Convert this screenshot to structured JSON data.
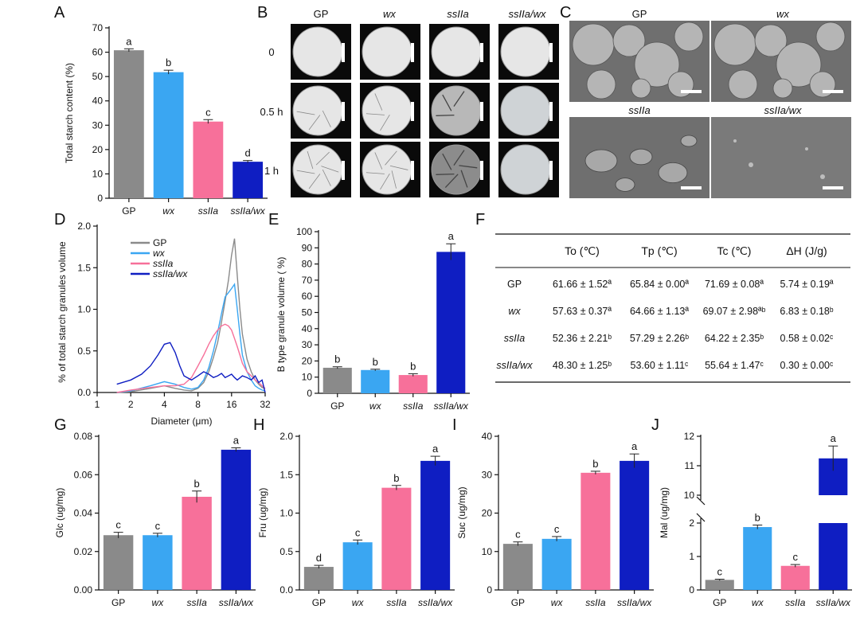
{
  "colors": {
    "GP": "#8a8a8a",
    "wx": "#3aa6f2",
    "ssIIa": "#f7709a",
    "ssIIa/wx": "#0f1ec2",
    "axis": "#111111",
    "photo_bg": "#0a0a0a",
    "sem_bg": "#6f6f6f"
  },
  "genotypes": [
    "GP",
    "wx",
    "ssIIa",
    "ssIIa/wx"
  ],
  "panels": {
    "A": {
      "letter": "A",
      "ylabel": "Total starch content (%)",
      "ylim": [
        0,
        70
      ],
      "ticks": [
        "0",
        "10",
        "20",
        "30",
        "40",
        "50",
        "60",
        "70"
      ]
    },
    "B": {
      "letter": "B",
      "columns": [
        "GP",
        "wx",
        "ssIIa",
        "ssIIa/wx"
      ],
      "rows": [
        "0",
        "0.5 h",
        "1 h"
      ],
      "icon": "petri-dish-photo-icon"
    },
    "C": {
      "letter": "C",
      "labels": [
        "GP",
        "wx",
        "ssIIa",
        "ssIIa/wx"
      ],
      "icon": "sem-micrograph-icon"
    },
    "D": {
      "letter": "D",
      "ylabel": "% of total starch granules volume",
      "xlabel": "Diameter (μm)",
      "yticks": [
        "0.0",
        "0.5",
        "1.0",
        "1.5",
        "2.0"
      ],
      "xticks": [
        "1",
        "2",
        "4",
        "8",
        "16",
        "32"
      ],
      "legend": [
        "GP",
        "wx",
        "ssIIa",
        "ssIIa/wx"
      ]
    },
    "E": {
      "letter": "E",
      "ylabel": "B type granule volume ( %)",
      "ylim": [
        0,
        100
      ],
      "ticks": [
        "0",
        "10",
        "20",
        "30",
        "40",
        "50",
        "60",
        "70",
        "80",
        "90",
        "100"
      ]
    },
    "F": {
      "letter": "F",
      "headers": [
        "",
        "To (℃)",
        "Tp (℃)",
        "Tc (℃)",
        "ΔH (J/g)"
      ],
      "rows": [
        [
          "GP",
          "61.66 ± 1.52ª",
          "65.84 ± 0.00ª",
          "71.69 ± 0.08ª",
          "5.74 ± 0.19ª"
        ],
        [
          "wx",
          "57.63 ± 0.37ª",
          "64.66 ± 1.13ª",
          "69.07 ± 2.98ªᵇ",
          "6.83 ± 0.18ᵇ"
        ],
        [
          "ssIIa",
          "52.36 ± 2.21ᵇ",
          "57.29 ± 2.26ᵇ",
          "64.22 ± 2.35ᵇ",
          "0.58 ± 0.02ᶜ"
        ],
        [
          "ssIIa/wx",
          "48.30 ± 1.25ᵇ",
          "53.60 ± 1.11ᶜ",
          "55.64 ± 1.47ᶜ",
          "0.30 ± 0.00ᶜ"
        ]
      ]
    },
    "G": {
      "letter": "G",
      "ylabel": "Glc (ug/mg)",
      "ticks": [
        "0.00",
        "0.02",
        "0.04",
        "0.06",
        "0.08"
      ]
    },
    "H": {
      "letter": "H",
      "ylabel": "Fru (ug/mg)",
      "ticks": [
        "0.0",
        "0.5",
        "1.0",
        "1.5",
        "2.0"
      ]
    },
    "I": {
      "letter": "I",
      "ylabel": "Suc (ug/mg)",
      "ticks": [
        "0",
        "10",
        "20",
        "30",
        "40"
      ]
    },
    "J": {
      "letter": "J",
      "ylabel": "Mal (ug/mg)",
      "ticks_low": [
        "0",
        "1",
        "2"
      ],
      "ticks_high": [
        "10",
        "11",
        "12"
      ]
    }
  },
  "chart_data": [
    {
      "panel": "A",
      "type": "bar",
      "categories": [
        "GP",
        "wx",
        "ssIIa",
        "ssIIa/wx"
      ],
      "values": [
        60.8,
        51.8,
        31.5,
        15.0
      ],
      "errors": [
        0.6,
        0.8,
        0.8,
        0.5
      ],
      "labels": [
        "a",
        "b",
        "c",
        "d"
      ],
      "ylabel": "Total starch content (%)",
      "ylim": [
        0,
        70
      ]
    },
    {
      "panel": "D",
      "type": "line",
      "xscale": "log2",
      "xlim": [
        1,
        32
      ],
      "ylim": [
        0,
        2.0
      ],
      "xlabel": "Diameter (μm)",
      "ylabel": "% of total starch granules volume",
      "series": [
        {
          "name": "GP",
          "x": [
            1.5,
            2,
            3,
            4,
            5,
            6,
            7,
            8,
            9,
            10,
            11,
            12,
            13,
            14,
            15,
            16,
            17,
            18,
            19,
            20,
            22,
            24,
            26,
            28,
            30,
            32
          ],
          "y": [
            0,
            0.01,
            0.05,
            0.08,
            0.05,
            0.03,
            0.02,
            0.05,
            0.12,
            0.25,
            0.42,
            0.6,
            0.85,
            1.1,
            1.35,
            1.65,
            1.85,
            1.4,
            1.0,
            0.7,
            0.4,
            0.25,
            0.15,
            0.1,
            0.06,
            0.05
          ]
        },
        {
          "name": "wx",
          "x": [
            1.5,
            2,
            3,
            4,
            5,
            6,
            7,
            8,
            9,
            10,
            11,
            12,
            13,
            14,
            15,
            16,
            17,
            18,
            19,
            20,
            22,
            24,
            26,
            28,
            30,
            32
          ],
          "y": [
            0,
            0.02,
            0.08,
            0.13,
            0.1,
            0.06,
            0.04,
            0.06,
            0.15,
            0.3,
            0.5,
            0.72,
            0.95,
            1.15,
            1.2,
            1.25,
            1.3,
            1.0,
            0.7,
            0.45,
            0.25,
            0.15,
            0.08,
            0.05,
            0.03,
            0.02
          ]
        },
        {
          "name": "ssIIa",
          "x": [
            1.5,
            2,
            3,
            4,
            5,
            6,
            7,
            8,
            9,
            10,
            11,
            12,
            13,
            14,
            15,
            16,
            17,
            18,
            19,
            20,
            22,
            24,
            26,
            28,
            30,
            32
          ],
          "y": [
            0,
            0.03,
            0.06,
            0.08,
            0.08,
            0.1,
            0.18,
            0.32,
            0.45,
            0.58,
            0.68,
            0.75,
            0.8,
            0.82,
            0.8,
            0.75,
            0.65,
            0.55,
            0.45,
            0.35,
            0.25,
            0.2,
            0.15,
            0.12,
            0.08,
            0.05
          ]
        },
        {
          "name": "ssIIa/wx",
          "x": [
            1.5,
            2,
            2.5,
            3,
            3.5,
            4,
            4.5,
            5,
            5.5,
            6,
            7,
            8,
            9,
            10,
            11,
            12,
            13,
            14,
            15,
            16,
            17,
            18,
            20,
            22,
            24,
            26,
            28,
            30,
            32
          ],
          "y": [
            0.1,
            0.15,
            0.22,
            0.32,
            0.45,
            0.58,
            0.6,
            0.48,
            0.32,
            0.2,
            0.15,
            0.2,
            0.25,
            0.22,
            0.18,
            0.2,
            0.23,
            0.18,
            0.2,
            0.22,
            0.18,
            0.15,
            0.2,
            0.18,
            0.15,
            0.2,
            0.12,
            0.15,
            0.0
          ]
        }
      ]
    },
    {
      "panel": "E",
      "type": "bar",
      "categories": [
        "GP",
        "wx",
        "ssIIa",
        "ssIIa/wx"
      ],
      "values": [
        15.8,
        14.4,
        11.3,
        87.5
      ],
      "errors": [
        0.6,
        0.5,
        0.8,
        5.0
      ],
      "labels": [
        "b",
        "b",
        "b",
        "a"
      ],
      "ylabel": "B type granule volume ( %)",
      "ylim": [
        0,
        100
      ]
    },
    {
      "panel": "F",
      "type": "table",
      "columns": [
        "To (℃)",
        "Tp (℃)",
        "Tc (℃)",
        "ΔH (J/g)"
      ],
      "rows": [
        "GP",
        "wx",
        "ssIIa",
        "ssIIa/wx"
      ]
    },
    {
      "panel": "G",
      "type": "bar",
      "categories": [
        "GP",
        "wx",
        "ssIIa",
        "ssIIa/wx"
      ],
      "values": [
        0.0285,
        0.0285,
        0.0485,
        0.073
      ],
      "errors": [
        0.0015,
        0.001,
        0.003,
        0.001
      ],
      "labels": [
        "c",
        "c",
        "b",
        "a"
      ],
      "ylabel": "Glc (ug/mg)",
      "ylim": [
        0,
        0.08
      ]
    },
    {
      "panel": "H",
      "type": "bar",
      "categories": [
        "GP",
        "wx",
        "ssIIa",
        "ssIIa/wx"
      ],
      "values": [
        0.3,
        0.62,
        1.33,
        1.68
      ],
      "errors": [
        0.02,
        0.03,
        0.03,
        0.06
      ],
      "labels": [
        "d",
        "c",
        "b",
        "a"
      ],
      "ylabel": "Fru (ug/mg)",
      "ylim": [
        0,
        2.0
      ]
    },
    {
      "panel": "I",
      "type": "bar",
      "categories": [
        "GP",
        "wx",
        "ssIIa",
        "ssIIa/wx"
      ],
      "values": [
        12.0,
        13.3,
        30.5,
        33.6
      ],
      "errors": [
        0.5,
        0.6,
        0.4,
        1.8
      ],
      "labels": [
        "c",
        "c",
        "b",
        "a"
      ],
      "ylabel": "Suc (ug/mg)",
      "ylim": [
        0,
        40
      ]
    },
    {
      "panel": "J",
      "type": "bar",
      "categories": [
        "GP",
        "wx",
        "ssIIa",
        "ssIIa/wx"
      ],
      "values": [
        0.3,
        1.88,
        0.72,
        11.25
      ],
      "errors": [
        0.02,
        0.06,
        0.04,
        0.42
      ],
      "labels": [
        "c",
        "b",
        "c",
        "a"
      ],
      "ylabel": "Mal (ug/mg)",
      "ylim": [
        0,
        12
      ],
      "axis_break": [
        2,
        10
      ]
    }
  ]
}
